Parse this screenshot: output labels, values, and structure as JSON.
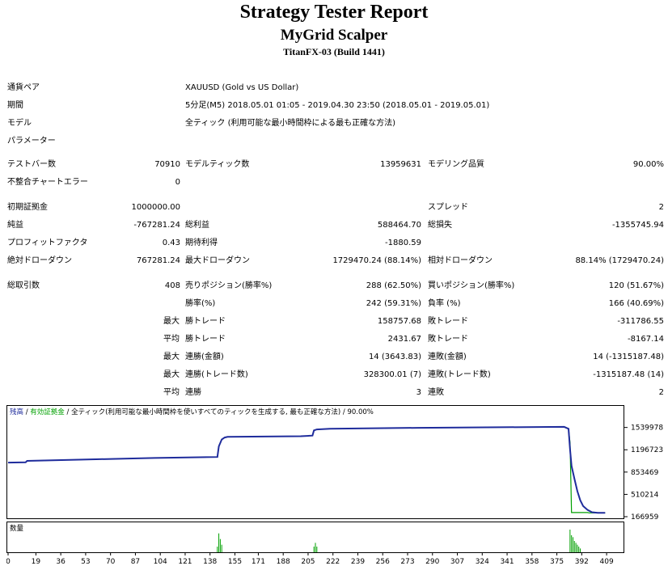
{
  "header": {
    "report_title": "Strategy Tester Report",
    "ea_name": "MyGrid Scalper",
    "broker": "TitanFX-03 (Build 1441)"
  },
  "info": {
    "symbol_label": "通貨ペア",
    "symbol_value": "XAUUSD (Gold vs US Dollar)",
    "period_label": "期間",
    "period_value": "5分足(M5) 2018.05.01 01:05 - 2019.04.30 23:50 (2018.05.01 - 2019.05.01)",
    "model_label": "モデル",
    "model_value": "全ティック (利用可能な最小時間枠による最も正確な方法)",
    "params_label": "パラメーター"
  },
  "stats": {
    "bars_label": "テストバー数",
    "bars_value": "70910",
    "ticks_label": "モデルティック数",
    "ticks_value": "13959631",
    "quality_label": "モデリング品質",
    "quality_value": "90.00%",
    "mismatch_label": "不整合チャートエラー",
    "mismatch_value": "0",
    "deposit_label": "初期証拠金",
    "deposit_value": "1000000.00",
    "spread_label": "スプレッド",
    "spread_value": "2",
    "net_label": "純益",
    "net_value": "-767281.24",
    "gross_profit_label": "総利益",
    "gross_profit_value": "588464.70",
    "gross_loss_label": "総損失",
    "gross_loss_value": "-1355745.94",
    "pf_label": "プロフィットファクタ",
    "pf_value": "0.43",
    "payoff_label": "期待利得",
    "payoff_value": "-1880.59",
    "abs_dd_label": "絶対ドローダウン",
    "abs_dd_value": "767281.24",
    "max_dd_label": "最大ドローダウン",
    "max_dd_value": "1729470.24 (88.14%)",
    "rel_dd_label": "相対ドローダウン",
    "rel_dd_value": "88.14% (1729470.24)",
    "total_trades_label": "総取引数",
    "total_trades_value": "408",
    "short_label": "売りポジション(勝率%)",
    "short_value": "288 (62.50%)",
    "long_label": "買いポジション(勝率%)",
    "long_value": "120 (51.67%)",
    "win_rate_label": "勝率(%)",
    "win_rate_value": "242 (59.31%)",
    "loss_rate_label": "負率 (%)",
    "loss_rate_value": "166 (40.69%)",
    "max_label": "最大",
    "avg_label": "平均",
    "largest_win_label": "勝トレード",
    "largest_win_value": "158757.68",
    "largest_loss_label": "敗トレード",
    "largest_loss_value": "-311786.55",
    "avg_win_label": "勝トレード",
    "avg_win_value": "2431.67",
    "avg_loss_label": "敗トレード",
    "avg_loss_value": "-8167.14",
    "max_cons_win_label": "連勝(金額)",
    "max_cons_win_value": "14 (3643.83)",
    "max_cons_loss_label": "連敗(金額)",
    "max_cons_loss_value": "14 (-1315187.48)",
    "max_cons_profit_label": "連勝(トレード数)",
    "max_cons_profit_value": "328300.01 (7)",
    "max_cons_lossamt_label": "連敗(トレード数)",
    "max_cons_lossamt_value": "-1315187.48 (14)",
    "avg_cons_win_label": "連勝",
    "avg_cons_win_value": "3",
    "avg_cons_loss_label": "連敗",
    "avg_cons_loss_value": "2"
  },
  "chart_data": {
    "type": "line",
    "legend": {
      "balance": "残高",
      "sep1": " / ",
      "equity": "有効証拠金",
      "sep2": " / ",
      "model": "全ティック(利用可能な最小時間枠を使いすべてのティックを生成する, 最も正確な方法)",
      "sep3": " / ",
      "quality": "90.00%"
    },
    "volume_label": "数量",
    "colors": {
      "balance": "#1f2c9c",
      "equity": "#00a000",
      "volume": "#00a000"
    },
    "ylim": [
      166959,
      1710000
    ],
    "y_ticks": [
      "1539978",
      "1196723",
      "853469",
      "510214",
      "166959"
    ],
    "y_tick_values": [
      1539978,
      1196723,
      853469,
      510214,
      166959
    ],
    "xlim": [
      0,
      420
    ],
    "x_ticks": [
      "0",
      "19",
      "36",
      "53",
      "70",
      "87",
      "104",
      "121",
      "138",
      "155",
      "171",
      "188",
      "205",
      "222",
      "239",
      "256",
      "273",
      "290",
      "307",
      "324",
      "341",
      "358",
      "375",
      "392",
      "409"
    ],
    "x_tick_values": [
      0,
      19,
      36,
      53,
      70,
      87,
      104,
      121,
      138,
      155,
      171,
      188,
      205,
      222,
      239,
      256,
      273,
      290,
      307,
      324,
      341,
      358,
      375,
      392,
      409
    ],
    "balance": {
      "x": [
        0,
        12,
        13,
        60,
        100,
        143,
        144,
        146,
        148,
        150,
        200,
        208,
        209,
        211,
        220,
        280,
        380,
        383,
        384,
        385,
        387,
        389,
        391,
        393,
        396,
        399,
        403,
        408
      ],
      "y": [
        1000000,
        1005000,
        1025000,
        1050000,
        1070000,
        1085000,
        1250000,
        1355000,
        1385000,
        1395000,
        1405000,
        1415000,
        1495000,
        1510000,
        1520000,
        1535000,
        1550000,
        1520000,
        1200000,
        950000,
        750000,
        560000,
        420000,
        330000,
        270000,
        235000,
        225000,
        225000
      ]
    },
    "equity": {
      "x": [
        0,
        12,
        13,
        60,
        100,
        143,
        144,
        146,
        148,
        150,
        200,
        208,
        209,
        211,
        220,
        280,
        380,
        383,
        384,
        385,
        396,
        397,
        408
      ],
      "y": [
        1000000,
        1005000,
        1025000,
        1050000,
        1070000,
        1085000,
        1250000,
        1355000,
        1385000,
        1395000,
        1405000,
        1415000,
        1495000,
        1510000,
        1520000,
        1535000,
        1550000,
        1520000,
        1300000,
        230000,
        230000,
        225000,
        225000
      ]
    },
    "volume": {
      "x": [
        143,
        144,
        145,
        146,
        209,
        210,
        211,
        384,
        385,
        386,
        387,
        388,
        389,
        390,
        391
      ],
      "y": [
        3,
        10,
        7,
        4,
        3,
        5,
        3,
        12,
        9,
        8,
        6,
        5,
        4,
        3,
        2
      ]
    }
  }
}
